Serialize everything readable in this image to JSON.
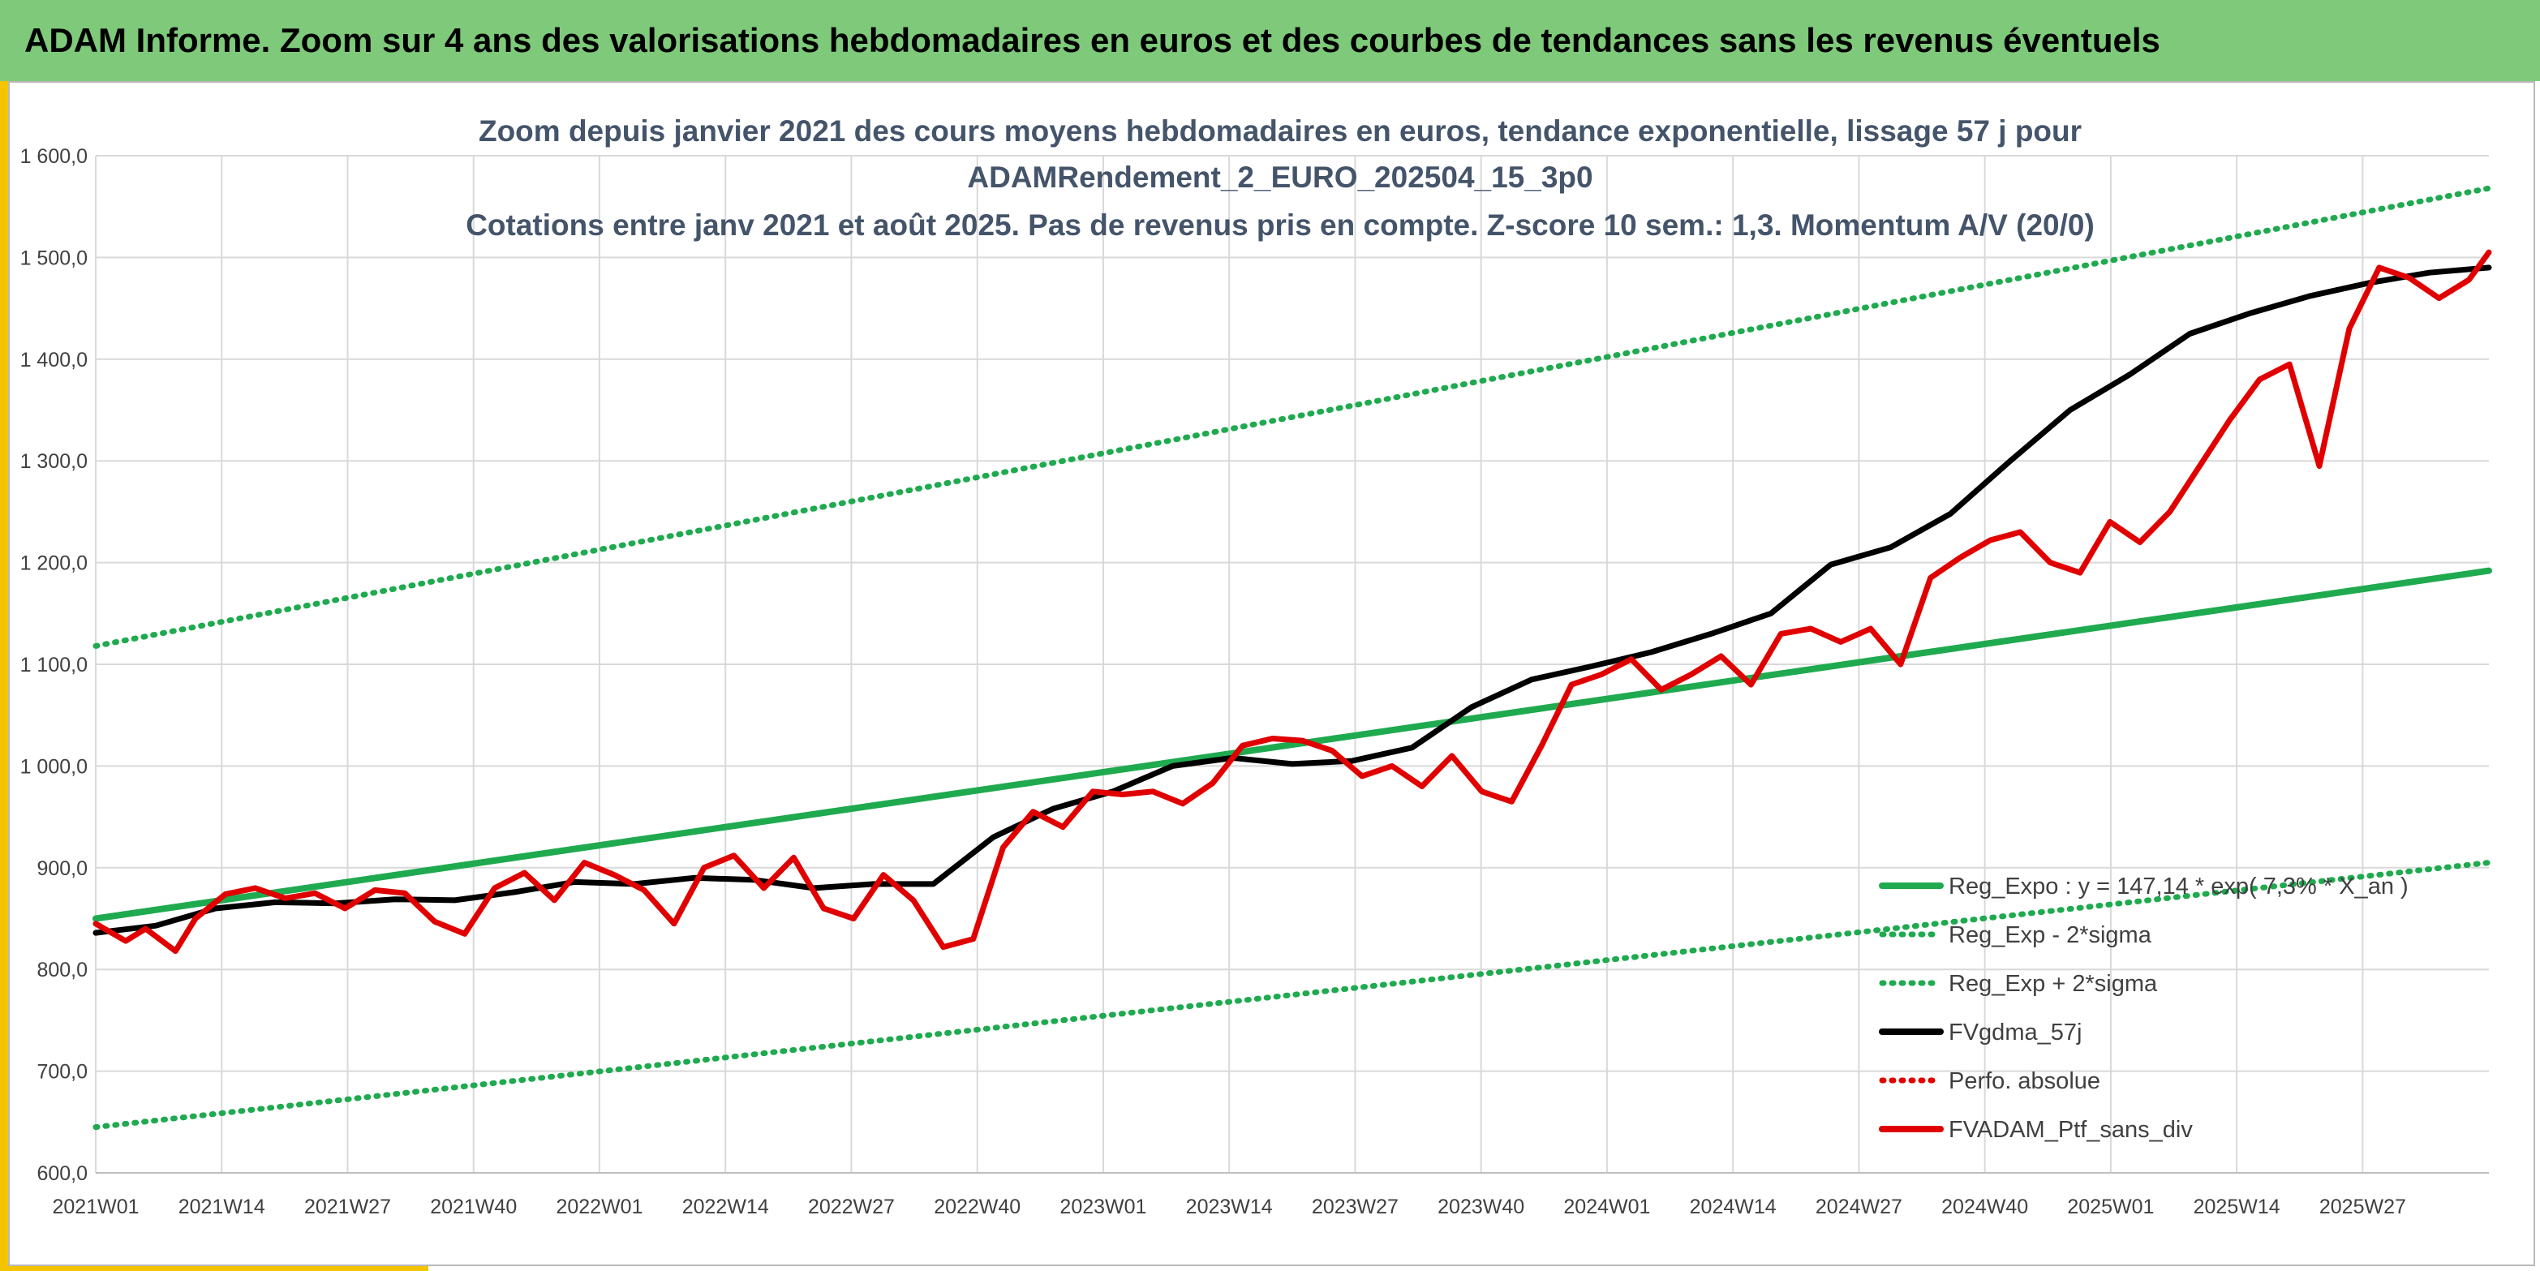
{
  "header": {
    "title": "ADAM Informe. Zoom sur 4 ans des valorisations hebdomadaires en euros et des courbes de tendances sans les revenus éventuels"
  },
  "colors": {
    "banner": "#7ec97a",
    "accent": "#f5c400",
    "trend": "#1faa4f",
    "smooth": "#000000",
    "portfolio": "#e00000"
  },
  "chart_data": {
    "type": "line",
    "title_lines": [
      "Zoom depuis janvier 2021 des cours moyens hebdomadaires en euros, tendance exponentielle, lissage 57 j pour",
      "ADAMRendement_2_EURO_202504_15_3p0",
      "Cotations entre janv 2021 et août 2025. Pas de revenus pris en compte. Z-score 10 sem.: 1,3. Momentum A/V (20/0)"
    ],
    "ylim": [
      600,
      1600
    ],
    "y_ticks": [
      "600,0",
      "700,0",
      "800,0",
      "900,0",
      "1 000,0",
      "1 100,0",
      "1 200,0",
      "1 300,0",
      "1 400,0",
      "1 500,0",
      "1 600,0"
    ],
    "x_ticks": [
      "2021W01",
      "2021W14",
      "2021W27",
      "2021W40",
      "2022W01",
      "2022W14",
      "2022W27",
      "2022W40",
      "2023W01",
      "2023W14",
      "2023W27",
      "2023W40",
      "2024W01",
      "2024W14",
      "2024W27",
      "2024W40",
      "2025W01",
      "2025W14",
      "2025W27"
    ],
    "grid": true,
    "legend_position": "bottom-right",
    "legend": [
      {
        "label": "Reg_Expo : y = 147,14 * exp( 7,3% * X_an )",
        "style": "solid",
        "color": "#1faa4f"
      },
      {
        "label": "Reg_Exp - 2*sigma",
        "style": "dotted",
        "color": "#1faa4f"
      },
      {
        "label": "Reg_Exp + 2*sigma",
        "style": "dotted",
        "color": "#1faa4f"
      },
      {
        "label": "FVgdma_57j",
        "style": "solid",
        "color": "#000000"
      },
      {
        "label": "Perfo. absolue",
        "style": "dotted",
        "color": "#e00000"
      },
      {
        "label": "FVADAM_Ptf_sans_div",
        "style": "solid",
        "color": "#e00000"
      }
    ],
    "series": [
      {
        "name": "Reg_Expo : y = 147,14 * exp( 7,3% * X_an )",
        "x": [
          0,
          240
        ],
        "y": [
          850,
          1192
        ]
      },
      {
        "name": "Reg_Exp - 2*sigma",
        "x": [
          0,
          240
        ],
        "y": [
          645,
          905
        ]
      },
      {
        "name": "Reg_Exp + 2*sigma",
        "x": [
          0,
          240
        ],
        "y": [
          1118,
          1568
        ]
      },
      {
        "name": "FVgdma_57j",
        "x": [
          0,
          6,
          12,
          18,
          24,
          30,
          36,
          42,
          48,
          54,
          60,
          66,
          72,
          78,
          84,
          90,
          96,
          102,
          108,
          114,
          120,
          126,
          132,
          138,
          144,
          150,
          156,
          162,
          168,
          174,
          180,
          186,
          192,
          198,
          204,
          210,
          216,
          222,
          228,
          234,
          240
        ],
        "y": [
          836,
          843,
          860,
          866,
          865,
          869,
          868,
          876,
          886,
          884,
          890,
          888,
          880,
          884,
          884,
          930,
          958,
          975,
          1000,
          1008,
          1002,
          1005,
          1018,
          1058,
          1085,
          1098,
          1112,
          1130,
          1150,
          1198,
          1215,
          1248,
          1300,
          1350,
          1385,
          1425,
          1445,
          1462,
          1475,
          1485,
          1490
        ]
      },
      {
        "name": "FVADAM_Ptf_sans_div",
        "x": [
          0,
          3,
          5,
          8,
          10,
          13,
          16,
          19,
          22,
          25,
          28,
          31,
          34,
          37,
          40,
          43,
          46,
          49,
          52,
          55,
          58,
          61,
          64,
          67,
          70,
          73,
          76,
          79,
          82,
          85,
          88,
          91,
          94,
          97,
          100,
          103,
          106,
          109,
          112,
          115,
          118,
          121,
          124,
          127,
          130,
          133,
          136,
          139,
          142,
          145,
          148,
          151,
          154,
          157,
          160,
          163,
          166,
          169,
          172,
          175,
          178,
          181,
          184,
          187,
          190,
          193,
          196,
          199,
          202,
          205,
          208,
          211,
          214,
          217,
          220,
          223,
          226,
          229,
          232,
          235,
          238,
          240
        ],
        "y": [
          845,
          828,
          840,
          818,
          850,
          874,
          880,
          870,
          875,
          860,
          878,
          875,
          847,
          835,
          880,
          895,
          868,
          905,
          893,
          878,
          845,
          900,
          912,
          880,
          910,
          860,
          850,
          893,
          868,
          822,
          830,
          920,
          955,
          940,
          975,
          972,
          975,
          963,
          983,
          1020,
          1027,
          1025,
          1015,
          990,
          1000,
          980,
          1010,
          975,
          965,
          1020,
          1080,
          1090,
          1105,
          1075,
          1090,
          1108,
          1080,
          1130,
          1135,
          1122,
          1135,
          1100,
          1185,
          1205,
          1222,
          1230,
          1200,
          1190,
          1240,
          1220,
          1250,
          1295,
          1340,
          1380,
          1395,
          1295,
          1430,
          1490,
          1480,
          1460,
          1478,
          1505
        ]
      }
    ]
  }
}
